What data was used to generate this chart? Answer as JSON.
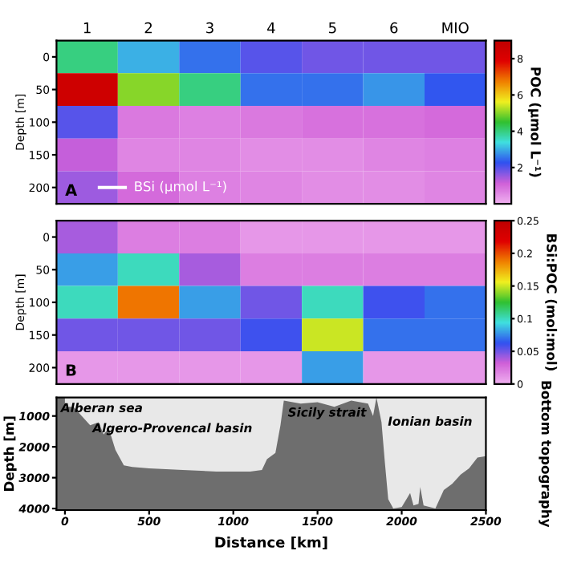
{
  "chart_data": [
    {
      "type": "heatmap",
      "ylabel": "Depth [m]",
      "clabel": "POC (µmol L⁻¹)",
      "categories": [
        "1",
        "2",
        "3",
        "4",
        "5",
        "6",
        "MIO"
      ],
      "y_categories": [
        "0",
        "50",
        "100",
        "150",
        "200"
      ],
      "cells": [
        [
          4,
          3,
          2.5,
          2,
          1.8,
          1.8,
          1.8
        ],
        [
          8.5,
          5,
          4,
          2.5,
          2.5,
          2.8,
          2.3
        ],
        [
          2,
          0.8,
          0.7,
          0.8,
          0.9,
          0.9,
          1
        ],
        [
          1.2,
          0.6,
          0.6,
          0.5,
          0.5,
          0.6,
          0.7
        ],
        [
          1.5,
          1,
          0.7,
          0.6,
          0.5,
          0.5,
          0.6
        ]
      ],
      "clim": [
        0,
        9
      ],
      "cticks": [
        2,
        4,
        6,
        8
      ],
      "annotations": [
        "A",
        "BSi (µmol L⁻¹)"
      ]
    },
    {
      "type": "heatmap",
      "ylabel": "Depth [m]",
      "clabel": "BSi:POC (mol:mol)",
      "categories": [
        null,
        null,
        null,
        null,
        null,
        null,
        null
      ],
      "y_categories": [
        "0",
        "50",
        "100",
        "150",
        "200"
      ],
      "tick_labels": "y",
      "cells": [
        [
          0.04,
          0.02,
          0.02,
          0.01,
          0.01,
          0.01,
          0.01
        ],
        [
          0.08,
          0.1,
          0.04,
          0.02,
          0.02,
          0.02,
          0.02
        ],
        [
          0.1,
          0.19,
          0.08,
          0.05,
          0.1,
          0.06,
          0.07
        ],
        [
          0.05,
          0.05,
          0.05,
          0.06,
          0.15,
          0.07,
          0.07
        ],
        [
          0.01,
          0.01,
          0.01,
          0.01,
          0.08,
          0.01,
          0.01
        ]
      ],
      "clim": [
        0,
        0.25
      ],
      "cticks": [
        0,
        0.05,
        0.1,
        0.15,
        0.2,
        0.25
      ],
      "annotations": [
        "B"
      ]
    },
    {
      "type": "area",
      "xlabel": "Distance [km]",
      "ylabel": "Depth [m]",
      "color": "#e8e8e8",
      "x": [
        0,
        50,
        100,
        150,
        200,
        230,
        260,
        300,
        350,
        400,
        500,
        700,
        900,
        1100,
        1170,
        1200,
        1250,
        1280,
        1300,
        1400,
        1500,
        1600,
        1700,
        1800,
        1830,
        1850,
        1880,
        1900,
        1920,
        1950,
        2000,
        2050,
        2070,
        2100,
        2110,
        2130,
        2200,
        2250,
        2300,
        2350,
        2400,
        2450,
        2500
      ],
      "values": [
        700,
        700,
        1000,
        1300,
        1200,
        1600,
        1400,
        2100,
        2600,
        2650,
        2700,
        2750,
        2800,
        2800,
        2750,
        2400,
        2200,
        1300,
        500,
        600,
        550,
        700,
        500,
        600,
        1000,
        400,
        1200,
        2500,
        3700,
        4000,
        3950,
        3500,
        3900,
        3850,
        3300,
        3900,
        4000,
        3400,
        3200,
        2900,
        2700,
        2350,
        2300
      ],
      "xlim": [
        -50,
        2500
      ],
      "xticks": [
        0,
        500,
        1000,
        1500,
        2000,
        2500
      ],
      "ylim": [
        4050,
        400
      ],
      "yticks": [
        1000,
        2000,
        3000,
        4000
      ],
      "annotations": [
        "Bottom topography",
        "Alberan sea",
        "Algero-Provencal basin",
        "Sicily strait",
        "Ionian basin"
      ]
    }
  ]
}
